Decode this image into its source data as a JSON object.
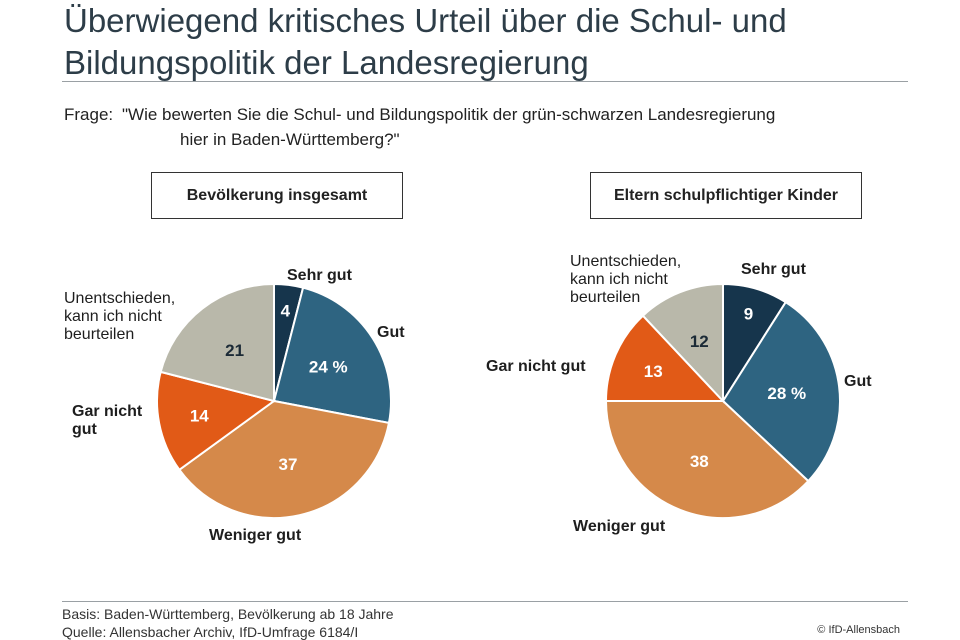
{
  "title_lines": [
    "Überwiegend kritisches Urteil über die Schul- und",
    "Bildungspolitik der Landesregierung"
  ],
  "question": {
    "prefix": "Frage:",
    "line1": "\"Wie bewerten Sie die Schul- und Bildungspolitik der grün-schwarzen Landesregierung",
    "line2": "hier in Baden-Württemberg?\""
  },
  "colors": {
    "Sehr gut": "#16354c",
    "Gut": "#2e6481",
    "Weniger gut": "#d5894a",
    "Gar nicht gut": "#e15a17",
    "Unentschieden": "#b9b8aa"
  },
  "chart_data": [
    {
      "type": "pie",
      "title": "Bevölkerung insgesamt",
      "unit": "%",
      "slices": [
        {
          "category": "Sehr gut",
          "label": "Sehr gut",
          "value": 4,
          "value_text": "4"
        },
        {
          "category": "Gut",
          "label": "Gut",
          "value": 24,
          "value_text": "24 %"
        },
        {
          "category": "Weniger gut",
          "label": "Weniger gut",
          "value": 37,
          "value_text": "37"
        },
        {
          "category": "Gar nicht gut",
          "label": "Gar nicht gut",
          "value": 14,
          "value_text": "14"
        },
        {
          "category": "Unentschieden",
          "label": "Unentschieden, kann ich nicht beurteilen",
          "value": 21,
          "value_text": "21"
        }
      ]
    },
    {
      "type": "pie",
      "title": "Eltern schulpflichtiger Kinder",
      "unit": "%",
      "slices": [
        {
          "category": "Sehr gut",
          "label": "Sehr gut",
          "value": 9,
          "value_text": "9"
        },
        {
          "category": "Gut",
          "label": "Gut",
          "value": 28,
          "value_text": "28 %"
        },
        {
          "category": "Weniger gut",
          "label": "Weniger gut",
          "value": 38,
          "value_text": "38"
        },
        {
          "category": "Gar nicht gut",
          "label": "Gar nicht gut",
          "value": 13,
          "value_text": "13"
        },
        {
          "category": "Unentschieden",
          "label": "Unentschieden, kann ich nicht beurteilen",
          "value": 12,
          "value_text": "12"
        }
      ]
    }
  ],
  "footer": {
    "basis": "Basis: Baden-Württemberg, Bevölkerung ab 18 Jahre",
    "source": "Quelle: Allensbacher Archiv, IfD-Umfrage 6184/I",
    "copyright": "© IfD-Allensbach"
  }
}
